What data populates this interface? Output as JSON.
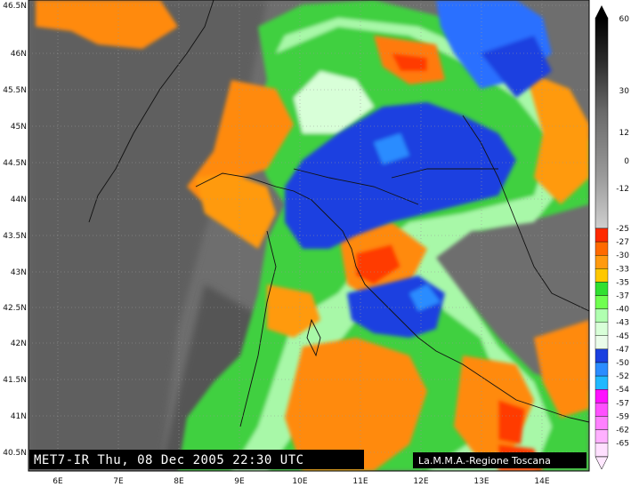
{
  "caption": "MET7-IR Thu, 08 Dec 2005 22:30 UTC",
  "credit": "La.M.M.A.-Regione Toscana",
  "lat_labels": [
    "46.5N",
    "46N",
    "45.5N",
    "45N",
    "44.5N",
    "44N",
    "43.5N",
    "43N",
    "42.5N",
    "42N",
    "41.5N",
    "41N",
    "40.5N"
  ],
  "lon_labels": [
    "6E",
    "7E",
    "8E",
    "9E",
    "10E",
    "11E",
    "12E",
    "13E",
    "14E"
  ],
  "scale_labels": [
    "60",
    "30",
    "12",
    "0",
    "-12",
    "-25",
    "-27",
    "-30",
    "-33",
    "-35",
    "-37",
    "-40",
    "-43",
    "-45",
    "-47",
    "-50",
    "-52",
    "-54",
    "-57",
    "-59",
    "-62",
    "-65"
  ],
  "scale_colors": {
    "-25": "#ff2a00",
    "-27": "#ff6a00",
    "-30": "#ff9a10",
    "-33": "#ffc800",
    "-35": "#30e030",
    "-37": "#70ff50",
    "-40": "#b0ffb0",
    "-43": "#d8ffd8",
    "-45": "#eafcea",
    "-47": "#1a40e0",
    "-50": "#2a8cff",
    "-52": "#20b8ff",
    "-54": "#ff10ff",
    "-57": "#ff50ff",
    "-59": "#ff80ff",
    "-62": "#ffb0ff",
    "-65": "#ffe0ff"
  }
}
